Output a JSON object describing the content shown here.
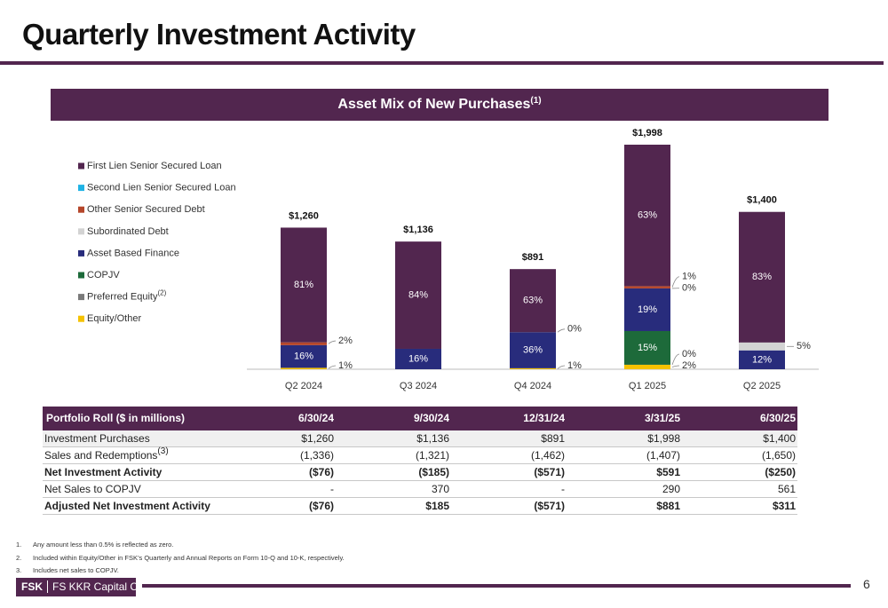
{
  "header": {
    "title": "Quarterly Investment Activity"
  },
  "chart_data": {
    "type": "stacked_bar",
    "title": "Asset Mix of New Purchases",
    "title_note": "(1)",
    "categories": [
      "Q2 2024",
      "Q3 2024",
      "Q4 2024",
      "Q1 2025",
      "Q2 2025"
    ],
    "totals": [
      1260,
      1136,
      891,
      1998,
      1400
    ],
    "total_labels": [
      "$1,260",
      "$1,136",
      "$891",
      "$1,998",
      "$1,400"
    ],
    "series": [
      {
        "name": "First Lien Senior Secured Loan",
        "color": "#52264f",
        "values": [
          81,
          84,
          63,
          63,
          83
        ],
        "value_labels": [
          "81%",
          "84%",
          "63%",
          "63%",
          "83%"
        ]
      },
      {
        "name": "Second Lien Senior Secured Loan",
        "color": "#1fb3e5",
        "values": [
          null,
          null,
          null,
          null,
          null
        ],
        "value_labels": [
          null,
          null,
          null,
          null,
          null
        ]
      },
      {
        "name": "Other Senior Secured Debt",
        "color": "#b5462a",
        "values": [
          2,
          null,
          null,
          1,
          null
        ],
        "value_labels": [
          "2%",
          null,
          null,
          "1%",
          null
        ]
      },
      {
        "name": "Subordinated Debt",
        "color": "#d3d3d3",
        "values": [
          null,
          null,
          0,
          0,
          5
        ],
        "value_labels": [
          null,
          null,
          "0%",
          "0%",
          "5%"
        ]
      },
      {
        "name": "Asset Based Finance",
        "color": "#282c7c",
        "values": [
          16,
          16,
          36,
          19,
          12
        ],
        "value_labels": [
          "16%",
          "16%",
          "36%",
          "19%",
          "12%"
        ]
      },
      {
        "name": "COPJV",
        "color": "#1d6a3a",
        "values": [
          null,
          null,
          null,
          15,
          null
        ],
        "value_labels": [
          null,
          null,
          null,
          "15%",
          null
        ]
      },
      {
        "name": "Preferred Equity",
        "note": "(2)",
        "color": "#7a7a7a",
        "values": [
          null,
          null,
          null,
          0,
          null
        ],
        "value_labels": [
          null,
          null,
          null,
          "0%",
          null
        ]
      },
      {
        "name": "Equity/Other",
        "color": "#f5c200",
        "values": [
          1,
          null,
          1,
          2,
          null
        ],
        "value_labels": [
          "1%",
          null,
          "1%",
          "2%",
          null
        ]
      }
    ]
  },
  "table": {
    "header": [
      "Portfolio Roll ($ in millions)",
      "6/30/24",
      "9/30/24",
      "12/31/24",
      "3/31/25",
      "6/30/25"
    ],
    "rows": [
      {
        "label": "Investment Purchases",
        "values": [
          "$1,260",
          "$1,136",
          "$891",
          "$1,998",
          "$1,400"
        ],
        "bold": false
      },
      {
        "label": "Sales and Redemptions",
        "note": "(3)",
        "values": [
          "(1,336)",
          "(1,321)",
          "(1,462)",
          "(1,407)",
          "(1,650)"
        ],
        "bold": false
      },
      {
        "label": "Net Investment Activity",
        "values": [
          "($76)",
          "($185)",
          "($571)",
          "$591",
          "($250)"
        ],
        "bold": true
      },
      {
        "label": "Net Sales to COPJV",
        "values": [
          "-",
          "370",
          "-",
          "290",
          "561"
        ],
        "bold": false
      },
      {
        "label": "Adjusted Net Investment Activity",
        "values": [
          "($76)",
          "$185",
          "($571)",
          "$881",
          "$311"
        ],
        "bold": true
      }
    ]
  },
  "footnotes": [
    {
      "number": "1.",
      "text": "Any amount less than 0.5% is reflected as zero."
    },
    {
      "number": "2.",
      "text": "Included within Equity/Other in FSK’s Quarterly and Annual Reports on Form 10-Q and 10-K, respectively."
    },
    {
      "number": "3.",
      "text": "Includes net sales to COPJV."
    }
  ],
  "footer": {
    "ticker": "FSK",
    "company": "FS KKR Capital Corp.",
    "page": "6"
  }
}
